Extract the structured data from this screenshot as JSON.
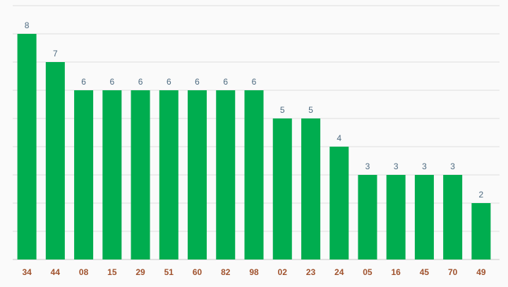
{
  "chart_data": {
    "type": "bar",
    "categories": [
      "34",
      "44",
      "08",
      "15",
      "29",
      "51",
      "60",
      "82",
      "98",
      "02",
      "23",
      "24",
      "05",
      "16",
      "45",
      "70",
      "49"
    ],
    "values": [
      8,
      7,
      6,
      6,
      6,
      6,
      6,
      6,
      6,
      5,
      5,
      4,
      3,
      3,
      3,
      3,
      2
    ],
    "title": "",
    "xlabel": "",
    "ylabel": "",
    "ylim": [
      0,
      9
    ],
    "grid": true,
    "data_labels": true,
    "bar_color": "#00ad4f",
    "tick_label_color": "#a0522d",
    "value_label_color": "#4d6a80"
  }
}
